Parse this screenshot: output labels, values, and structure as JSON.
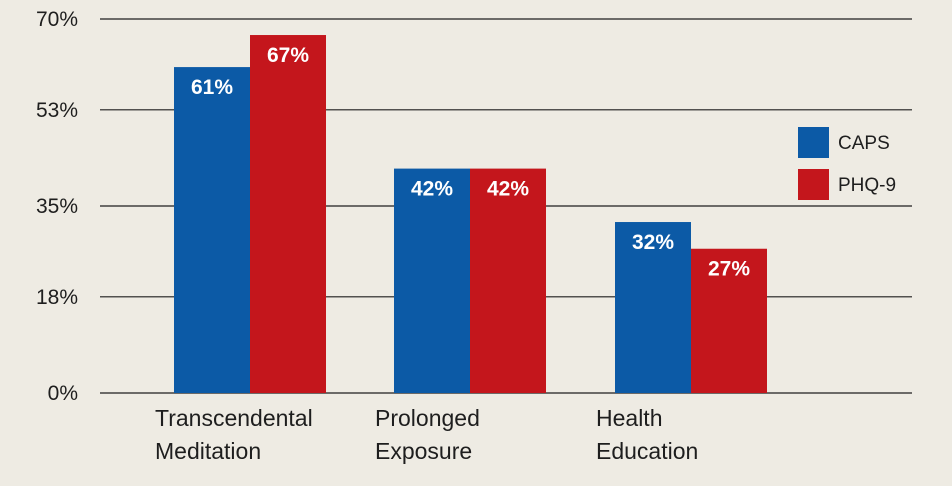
{
  "chart_data": {
    "type": "bar",
    "title": "",
    "xlabel": "",
    "ylabel": "",
    "ylim": [
      0,
      70
    ],
    "yticks": [
      0,
      18,
      35,
      53,
      70
    ],
    "ytick_labels": [
      "0%",
      "18%",
      "35%",
      "53%",
      "70%"
    ],
    "grid": true,
    "legend_position": "right",
    "categories": [
      [
        "Transcendental",
        "Meditation"
      ],
      [
        "Prolonged",
        "Exposure"
      ],
      [
        "Health",
        "Education"
      ]
    ],
    "series": [
      {
        "name": "CAPS",
        "color": "#0c5aa6",
        "values": [
          61,
          42,
          32
        ],
        "labels": [
          "61%",
          "42%",
          "32%"
        ]
      },
      {
        "name": "PHQ-9",
        "color": "#c4161c",
        "values": [
          67,
          42,
          27
        ],
        "labels": [
          "67%",
          "42%",
          "27%"
        ]
      }
    ]
  }
}
